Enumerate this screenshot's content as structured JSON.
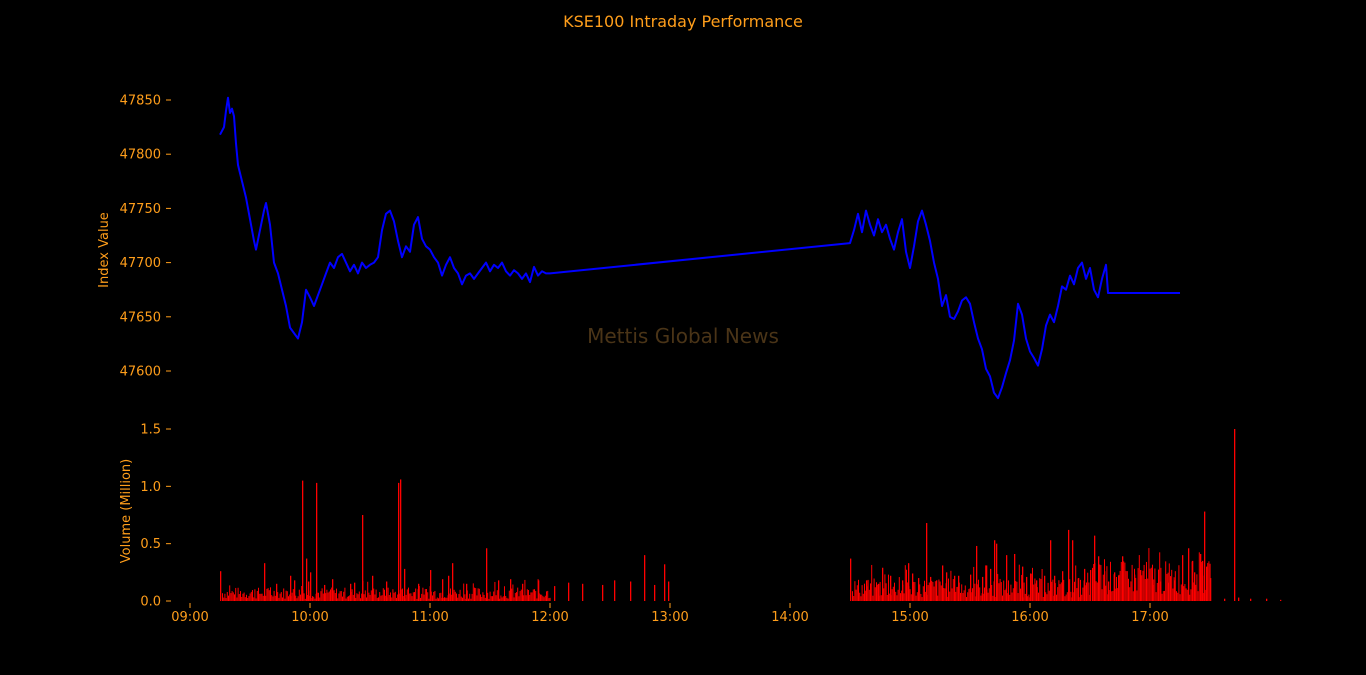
{
  "chart_data": [
    {
      "type": "line",
      "title": "KSE100 Intraday Performance",
      "ylabel": "Index Value",
      "ylim": [
        47570,
        47865
      ],
      "yticks": [
        47600,
        47650,
        47700,
        47750,
        47800,
        47850
      ],
      "watermark": "Mettis Global News",
      "line_color": "#0000ff",
      "series": [
        {
          "points": [
            [
              "09:15",
              47818
            ],
            [
              "09:17",
              47825
            ],
            [
              "09:18",
              47840
            ],
            [
              "09:19",
              47852
            ],
            [
              "09:20",
              47838
            ],
            [
              "09:21",
              47842
            ],
            [
              "09:22",
              47835
            ],
            [
              "09:23",
              47810
            ],
            [
              "09:24",
              47790
            ],
            [
              "09:26",
              47775
            ],
            [
              "09:28",
              47760
            ],
            [
              "09:30",
              47740
            ],
            [
              "09:32",
              47720
            ],
            [
              "09:33",
              47712
            ],
            [
              "09:35",
              47730
            ],
            [
              "09:37",
              47748
            ],
            [
              "09:38",
              47755
            ],
            [
              "09:40",
              47735
            ],
            [
              "09:42",
              47700
            ],
            [
              "09:44",
              47690
            ],
            [
              "09:46",
              47675
            ],
            [
              "09:48",
              47660
            ],
            [
              "09:50",
              47640
            ],
            [
              "09:52",
              47635
            ],
            [
              "09:54",
              47630
            ],
            [
              "09:56",
              47645
            ],
            [
              "09:58",
              47675
            ],
            [
              "10:00",
              47668
            ],
            [
              "10:02",
              47660
            ],
            [
              "10:04",
              47670
            ],
            [
              "10:06",
              47680
            ],
            [
              "10:08",
              47690
            ],
            [
              "10:10",
              47700
            ],
            [
              "10:12",
              47695
            ],
            [
              "10:14",
              47705
            ],
            [
              "10:16",
              47708
            ],
            [
              "10:18",
              47700
            ],
            [
              "10:20",
              47692
            ],
            [
              "10:22",
              47698
            ],
            [
              "10:24",
              47690
            ],
            [
              "10:26",
              47700
            ],
            [
              "10:28",
              47695
            ],
            [
              "10:30",
              47698
            ],
            [
              "10:32",
              47700
            ],
            [
              "10:34",
              47705
            ],
            [
              "10:36",
              47730
            ],
            [
              "10:38",
              47745
            ],
            [
              "10:40",
              47748
            ],
            [
              "10:42",
              47738
            ],
            [
              "10:44",
              47720
            ],
            [
              "10:46",
              47705
            ],
            [
              "10:48",
              47715
            ],
            [
              "10:50",
              47710
            ],
            [
              "10:52",
              47735
            ],
            [
              "10:54",
              47742
            ],
            [
              "10:56",
              47722
            ],
            [
              "10:58",
              47715
            ],
            [
              "11:00",
              47712
            ],
            [
              "11:02",
              47705
            ],
            [
              "11:04",
              47700
            ],
            [
              "11:06",
              47688
            ],
            [
              "11:08",
              47698
            ],
            [
              "11:10",
              47705
            ],
            [
              "11:12",
              47695
            ],
            [
              "11:14",
              47690
            ],
            [
              "11:16",
              47680
            ],
            [
              "11:18",
              47688
            ],
            [
              "11:20",
              47690
            ],
            [
              "11:22",
              47685
            ],
            [
              "11:24",
              47690
            ],
            [
              "11:26",
              47695
            ],
            [
              "11:28",
              47700
            ],
            [
              "11:30",
              47692
            ],
            [
              "11:32",
              47698
            ],
            [
              "11:34",
              47695
            ],
            [
              "11:36",
              47700
            ],
            [
              "11:38",
              47692
            ],
            [
              "11:40",
              47688
            ],
            [
              "11:42",
              47693
            ],
            [
              "11:44",
              47690
            ],
            [
              "11:46",
              47685
            ],
            [
              "11:48",
              47690
            ],
            [
              "11:50",
              47682
            ],
            [
              "11:52",
              47696
            ],
            [
              "11:54",
              47688
            ],
            [
              "11:56",
              47692
            ],
            [
              "11:58",
              47690
            ],
            [
              "12:00",
              47690
            ],
            [
              "14:30",
              47718
            ],
            [
              "14:32",
              47730
            ],
            [
              "14:34",
              47745
            ],
            [
              "14:36",
              47728
            ],
            [
              "14:38",
              47748
            ],
            [
              "14:40",
              47735
            ],
            [
              "14:42",
              47725
            ],
            [
              "14:44",
              47740
            ],
            [
              "14:46",
              47728
            ],
            [
              "14:48",
              47735
            ],
            [
              "14:50",
              47722
            ],
            [
              "14:52",
              47712
            ],
            [
              "14:54",
              47728
            ],
            [
              "14:56",
              47740
            ],
            [
              "14:58",
              47710
            ],
            [
              "15:00",
              47695
            ],
            [
              "15:02",
              47715
            ],
            [
              "15:04",
              47738
            ],
            [
              "15:06",
              47748
            ],
            [
              "15:08",
              47735
            ],
            [
              "15:10",
              47720
            ],
            [
              "15:12",
              47700
            ],
            [
              "15:14",
              47685
            ],
            [
              "15:16",
              47660
            ],
            [
              "15:18",
              47670
            ],
            [
              "15:20",
              47650
            ],
            [
              "15:22",
              47648
            ],
            [
              "15:24",
              47655
            ],
            [
              "15:26",
              47665
            ],
            [
              "15:28",
              47668
            ],
            [
              "15:30",
              47662
            ],
            [
              "15:32",
              47645
            ],
            [
              "15:34",
              47630
            ],
            [
              "15:36",
              47620
            ],
            [
              "15:38",
              47602
            ],
            [
              "15:40",
              47595
            ],
            [
              "15:42",
              47580
            ],
            [
              "15:44",
              47575
            ],
            [
              "15:46",
              47585
            ],
            [
              "15:48",
              47598
            ],
            [
              "15:50",
              47610
            ],
            [
              "15:52",
              47628
            ],
            [
              "15:54",
              47662
            ],
            [
              "15:56",
              47652
            ],
            [
              "15:58",
              47630
            ],
            [
              "16:00",
              47618
            ],
            [
              "16:02",
              47612
            ],
            [
              "16:04",
              47605
            ],
            [
              "16:06",
              47620
            ],
            [
              "16:08",
              47642
            ],
            [
              "16:10",
              47652
            ],
            [
              "16:12",
              47645
            ],
            [
              "16:14",
              47660
            ],
            [
              "16:16",
              47678
            ],
            [
              "16:18",
              47675
            ],
            [
              "16:20",
              47688
            ],
            [
              "16:22",
              47680
            ],
            [
              "16:24",
              47695
            ],
            [
              "16:26",
              47700
            ],
            [
              "16:28",
              47685
            ],
            [
              "16:30",
              47695
            ],
            [
              "16:32",
              47675
            ],
            [
              "16:34",
              47668
            ],
            [
              "16:36",
              47685
            ],
            [
              "16:38",
              47698
            ],
            [
              "16:39",
              47672
            ],
            [
              "17:15",
              47672
            ]
          ]
        }
      ]
    },
    {
      "type": "bar",
      "ylabel": "Volume (Million)",
      "ylim": [
        0,
        1.5
      ],
      "yticks": [
        "0.0",
        "0.5",
        "1.0",
        "1.5"
      ],
      "xticks": [
        "09:00",
        "10:00",
        "11:00",
        "12:00",
        "13:00",
        "14:00",
        "15:00",
        "16:00",
        "17:00"
      ],
      "bar_color": "#ff0000",
      "spikes": [
        [
          "09:15",
          0.26
        ],
        [
          "09:37",
          0.33
        ],
        [
          "09:43",
          0.15
        ],
        [
          "09:50",
          0.22
        ],
        [
          "09:52",
          0.18
        ],
        [
          "09:56",
          1.05
        ],
        [
          "09:58",
          0.37
        ],
        [
          "09:59",
          0.17
        ],
        [
          "10:00",
          0.25
        ],
        [
          "10:03",
          1.03
        ],
        [
          "10:07",
          0.14
        ],
        [
          "10:11",
          0.19
        ],
        [
          "10:20",
          0.15
        ],
        [
          "10:22",
          0.16
        ],
        [
          "10:26",
          0.75
        ],
        [
          "10:31",
          0.22
        ],
        [
          "10:38",
          0.17
        ],
        [
          "10:44",
          1.03
        ],
        [
          "10:45",
          1.06
        ],
        [
          "10:47",
          0.28
        ],
        [
          "10:54",
          0.15
        ],
        [
          "11:00",
          0.27
        ],
        [
          "11:06",
          0.19
        ],
        [
          "11:09",
          0.22
        ],
        [
          "11:11",
          0.33
        ],
        [
          "11:18",
          0.15
        ],
        [
          "11:28",
          0.46
        ],
        [
          "11:34",
          0.18
        ],
        [
          "11:40",
          0.19
        ],
        [
          "11:46",
          0.15
        ],
        [
          "11:54",
          0.18
        ],
        [
          "12:02",
          0.13
        ],
        [
          "12:09",
          0.16
        ],
        [
          "12:16",
          0.15
        ],
        [
          "12:26",
          0.14
        ],
        [
          "12:32",
          0.18
        ],
        [
          "12:40",
          0.17
        ],
        [
          "12:47",
          0.4
        ],
        [
          "12:52",
          0.14
        ],
        [
          "12:57",
          0.32
        ],
        [
          "12:59",
          0.17
        ],
        [
          "14:30",
          0.37
        ],
        [
          "14:38",
          0.18
        ],
        [
          "14:44",
          0.15
        ],
        [
          "14:46",
          0.29
        ],
        [
          "14:50",
          0.22
        ],
        [
          "14:56",
          0.18
        ],
        [
          "14:59",
          0.33
        ],
        [
          "15:01",
          0.24
        ],
        [
          "15:04",
          0.2
        ],
        [
          "15:08",
          0.68
        ],
        [
          "15:10",
          0.21
        ],
        [
          "15:13",
          0.18
        ],
        [
          "15:16",
          0.31
        ],
        [
          "15:18",
          0.25
        ],
        [
          "15:22",
          0.22
        ],
        [
          "15:24",
          0.22
        ],
        [
          "15:30",
          0.23
        ],
        [
          "15:33",
          0.48
        ],
        [
          "15:36",
          0.21
        ],
        [
          "15:38",
          0.31
        ],
        [
          "15:40",
          0.28
        ],
        [
          "15:42",
          0.53
        ],
        [
          "15:43",
          0.5
        ],
        [
          "15:48",
          0.4
        ],
        [
          "15:52",
          0.41
        ],
        [
          "15:56",
          0.3
        ],
        [
          "15:58",
          0.21
        ],
        [
          "16:00",
          0.24
        ],
        [
          "16:03",
          0.18
        ],
        [
          "16:07",
          0.22
        ],
        [
          "16:10",
          0.53
        ],
        [
          "16:12",
          0.22
        ],
        [
          "16:16",
          0.26
        ],
        [
          "16:19",
          0.62
        ],
        [
          "16:21",
          0.53
        ],
        [
          "16:24",
          0.2
        ],
        [
          "16:27",
          0.28
        ],
        [
          "16:30",
          0.27
        ],
        [
          "16:32",
          0.57
        ],
        [
          "16:34",
          0.39
        ],
        [
          "16:37",
          0.26
        ],
        [
          "16:39",
          0.17
        ],
        [
          "16:42",
          0.25
        ],
        [
          "16:44",
          0.22
        ],
        [
          "16:46",
          0.39
        ],
        [
          "16:52",
          0.23
        ],
        [
          "16:55",
          0.27
        ],
        [
          "17:01",
          0.14
        ],
        [
          "17:05",
          0.17
        ],
        [
          "17:09",
          0.16
        ],
        [
          "17:12",
          0.18
        ],
        [
          "17:16",
          0.4
        ],
        [
          "17:19",
          0.46
        ],
        [
          "17:21",
          0.35
        ],
        [
          "17:22",
          0.25
        ],
        [
          "17:25",
          0.41
        ],
        [
          "17:26",
          0.35
        ],
        [
          "17:27",
          0.78
        ],
        [
          "17:28",
          0.3
        ],
        [
          "17:30",
          0.2
        ],
        [
          "17:37",
          0.02
        ],
        [
          "17:42",
          1.5
        ],
        [
          "17:44",
          0.03
        ],
        [
          "17:50",
          0.02
        ],
        [
          "17:58",
          0.02
        ],
        [
          "18:05",
          0.01
        ]
      ]
    }
  ]
}
